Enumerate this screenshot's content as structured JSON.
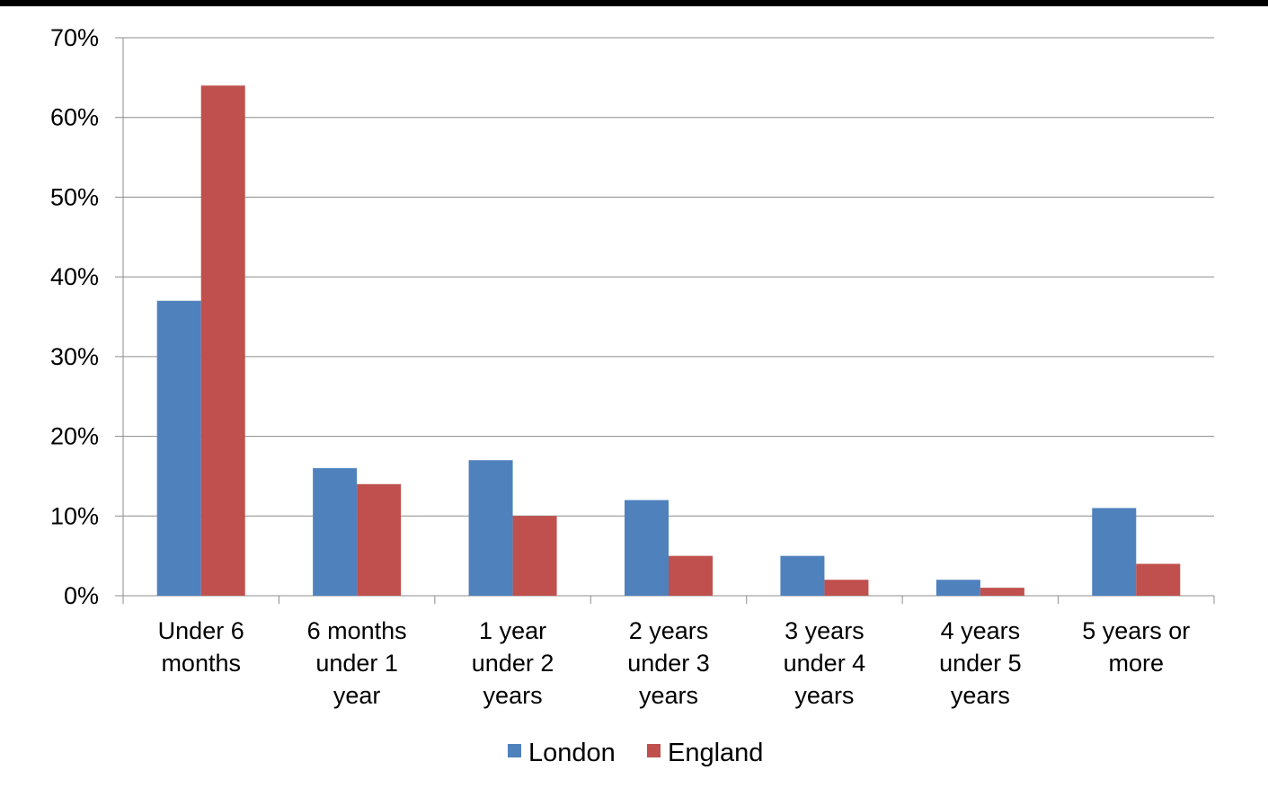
{
  "chart_data": {
    "type": "bar",
    "title": "",
    "xlabel": "",
    "ylabel": "",
    "categories": [
      [
        "Under 6",
        "months"
      ],
      [
        "6 months",
        "under 1",
        "year"
      ],
      [
        "1 year",
        "under 2",
        "years"
      ],
      [
        "2 years",
        "under 3",
        "years"
      ],
      [
        "3 years",
        "under 4",
        "years"
      ],
      [
        "4 years",
        "under 5",
        "years"
      ],
      [
        "5 years or",
        "more"
      ]
    ],
    "series": [
      {
        "name": "London",
        "color": "#4F81BD",
        "values": [
          37,
          16,
          17,
          12,
          5,
          2,
          11
        ]
      },
      {
        "name": "England",
        "color": "#C0504D",
        "values": [
          64,
          14,
          10,
          5,
          2,
          1,
          4
        ]
      }
    ],
    "ylim": [
      0,
      70
    ],
    "yticks": [
      "0%",
      "10%",
      "20%",
      "30%",
      "40%",
      "50%",
      "60%",
      "70%"
    ],
    "grid": true,
    "legend_position": "bottom"
  }
}
